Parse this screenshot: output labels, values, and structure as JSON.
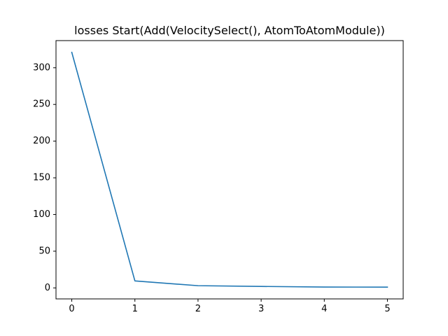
{
  "chart_data": {
    "type": "line",
    "title": "losses Start(Add(VelocitySelect(), AtomToAtomModule))",
    "xlabel": "",
    "ylabel": "",
    "x": [
      0,
      1,
      2,
      3,
      4,
      5
    ],
    "series": [
      {
        "values": [
          321,
          9.5,
          3,
          2,
          1.2,
          1
        ],
        "color": "#1f77b4"
      }
    ],
    "xlim": [
      -0.25,
      5.25
    ],
    "ylim": [
      -15,
      337
    ],
    "x_ticks": [
      0,
      1,
      2,
      3,
      4,
      5
    ],
    "x_tick_labels": [
      "0",
      "1",
      "2",
      "3",
      "4",
      "5"
    ],
    "y_ticks": [
      0,
      50,
      100,
      150,
      200,
      250,
      300
    ],
    "y_tick_labels": [
      "0",
      "50",
      "100",
      "150",
      "200",
      "250",
      "300"
    ],
    "grid": false,
    "legend": "none"
  }
}
